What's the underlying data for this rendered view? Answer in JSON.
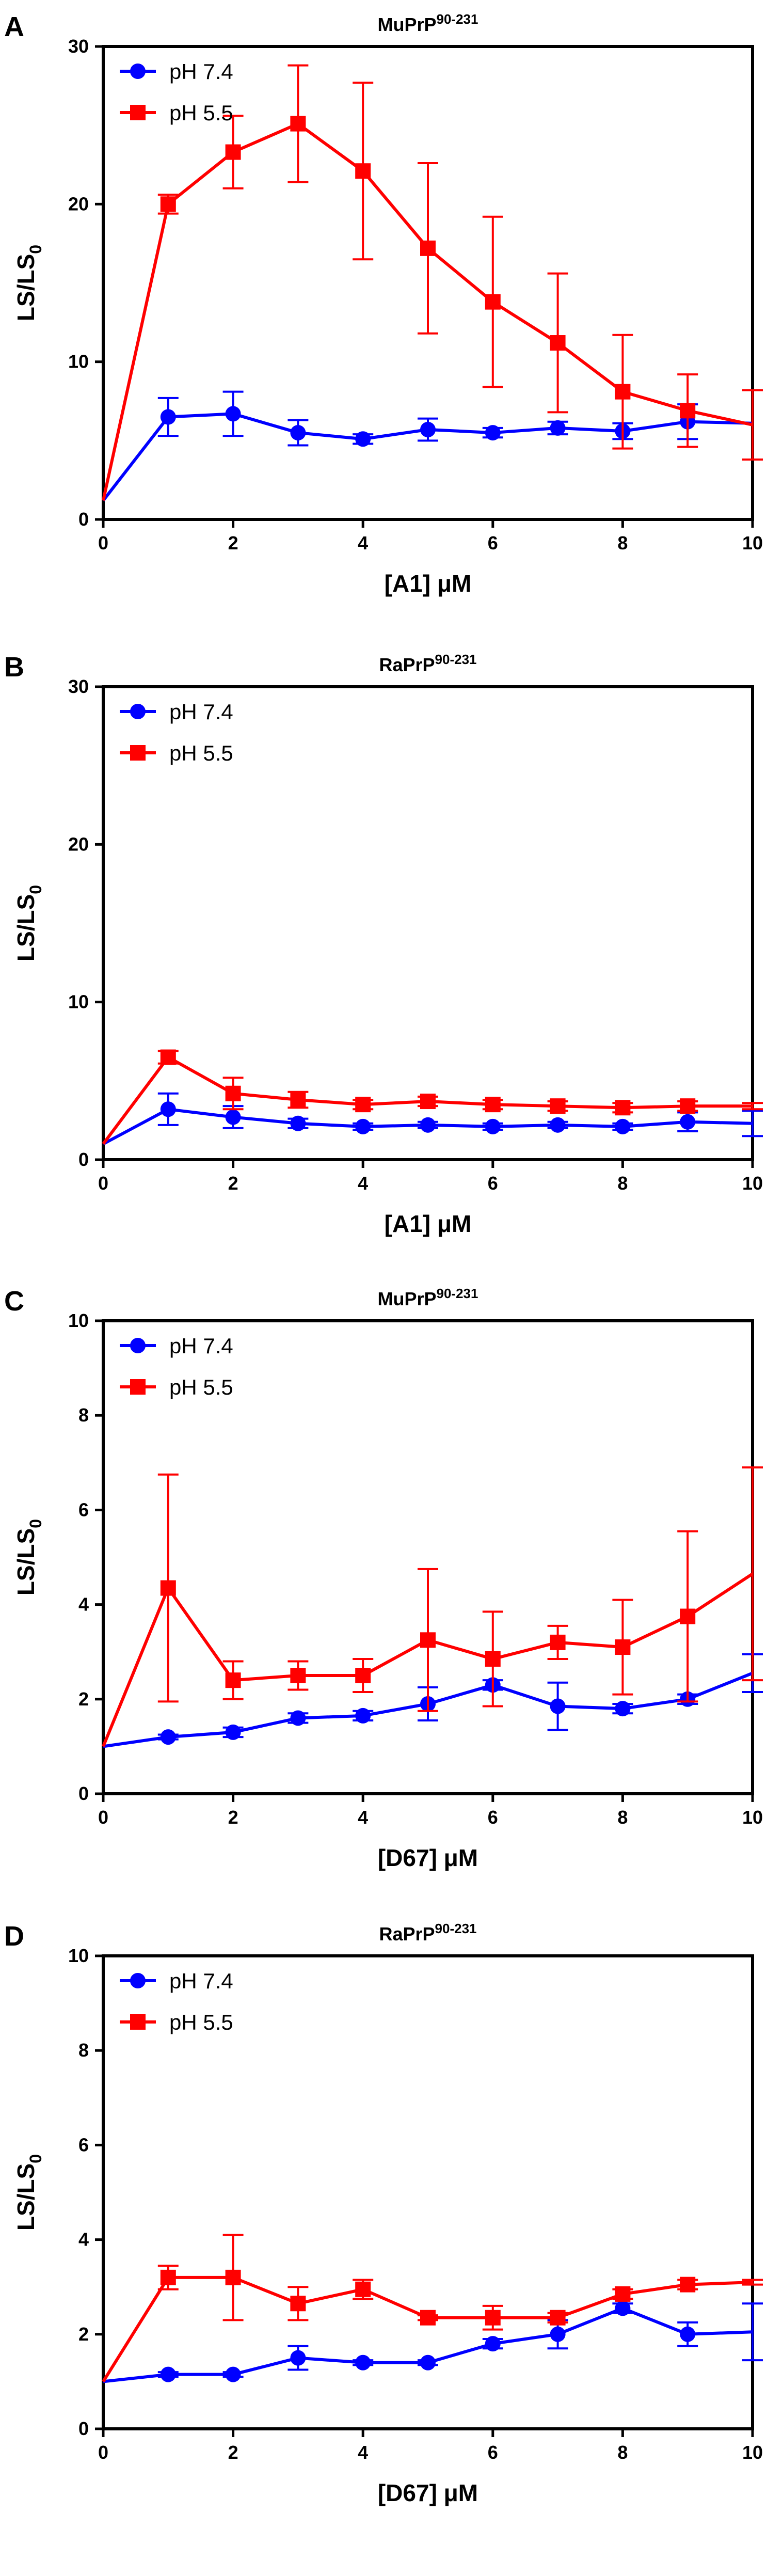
{
  "chart_data": [
    {
      "type": "line",
      "panel_letter": "A",
      "title": "MuPrP",
      "title_superscript": "90-231",
      "xlabel": "[A1] μM",
      "ylabel": "LS/LS",
      "ylabel_subscript": "0",
      "xlim": [
        0,
        10
      ],
      "ylim": [
        0,
        30
      ],
      "xticks": [
        0,
        2,
        4,
        6,
        8,
        10
      ],
      "yticks": [
        0,
        10,
        20,
        30
      ],
      "x": [
        0,
        1,
        2,
        3,
        4,
        5,
        6,
        7,
        8,
        9,
        10
      ],
      "legend_position": "top-left",
      "series": [
        {
          "name": "pH 7.4",
          "color": "#0000ff",
          "marker": "circle",
          "values": [
            1.2,
            6.5,
            6.7,
            5.5,
            5.1,
            5.7,
            5.5,
            5.8,
            5.6,
            6.2,
            6.1
          ],
          "errors": [
            0,
            1.2,
            1.4,
            0.8,
            0.3,
            0.7,
            0.3,
            0.4,
            0.5,
            1.1,
            0
          ]
        },
        {
          "name": "pH 5.5",
          "color": "#ff0000",
          "marker": "square",
          "values": [
            1.2,
            20,
            23.3,
            25.1,
            22.1,
            17.2,
            13.8,
            11.2,
            8.1,
            6.9,
            6.0
          ],
          "errors": [
            0,
            0.6,
            2.3,
            3.7,
            5.6,
            5.4,
            5.4,
            4.4,
            3.6,
            2.3,
            2.2
          ]
        }
      ]
    },
    {
      "type": "line",
      "panel_letter": "B",
      "title": "RaPrP",
      "title_superscript": "90-231",
      "xlabel": "[A1] μM",
      "ylabel": "LS/LS",
      "ylabel_subscript": "0",
      "xlim": [
        0,
        10
      ],
      "ylim": [
        0,
        30
      ],
      "xticks": [
        0,
        2,
        4,
        6,
        8,
        10
      ],
      "yticks": [
        0,
        10,
        20,
        30
      ],
      "x": [
        0,
        1,
        2,
        3,
        4,
        5,
        6,
        7,
        8,
        9,
        10
      ],
      "legend_position": "top-left",
      "series": [
        {
          "name": "pH 7.4",
          "color": "#0000ff",
          "marker": "circle",
          "values": [
            1.0,
            3.2,
            2.7,
            2.3,
            2.1,
            2.2,
            2.1,
            2.2,
            2.1,
            2.4,
            2.3
          ],
          "errors": [
            0,
            1.0,
            0.7,
            0.3,
            0.2,
            0.2,
            0.2,
            0.2,
            0.2,
            0.6,
            0.8
          ]
        },
        {
          "name": "pH 5.5",
          "color": "#ff0000",
          "marker": "square",
          "values": [
            1.0,
            6.5,
            4.2,
            3.8,
            3.5,
            3.7,
            3.5,
            3.4,
            3.3,
            3.4,
            3.4
          ],
          "errors": [
            0,
            0.4,
            1.0,
            0.5,
            0.3,
            0.3,
            0.3,
            0.3,
            0.3,
            0.3,
            0.2
          ]
        }
      ]
    },
    {
      "type": "line",
      "panel_letter": "C",
      "title": "MuPrP",
      "title_superscript": "90-231",
      "xlabel": "[D67] μM",
      "ylabel": "LS/LS",
      "ylabel_subscript": "0",
      "xlim": [
        0,
        10
      ],
      "ylim": [
        0,
        10
      ],
      "xticks": [
        0,
        2,
        4,
        6,
        8,
        10
      ],
      "yticks": [
        0,
        2,
        4,
        6,
        8,
        10
      ],
      "x": [
        0,
        1,
        2,
        3,
        4,
        5,
        6,
        7,
        8,
        9,
        10
      ],
      "legend_position": "top-left",
      "series": [
        {
          "name": "pH 7.4",
          "color": "#0000ff",
          "marker": "circle",
          "values": [
            1.0,
            1.2,
            1.3,
            1.6,
            1.65,
            1.9,
            2.3,
            1.85,
            1.8,
            2.0,
            2.55
          ],
          "errors": [
            0,
            0.05,
            0.1,
            0.1,
            0.1,
            0.35,
            0.1,
            0.5,
            0.1,
            0.1,
            0.4
          ]
        },
        {
          "name": "pH 5.5",
          "color": "#ff0000",
          "marker": "square",
          "values": [
            1.0,
            4.35,
            2.4,
            2.5,
            2.5,
            3.25,
            2.85,
            3.2,
            3.1,
            3.75,
            4.65
          ],
          "errors": [
            0,
            2.4,
            0.4,
            0.3,
            0.35,
            1.5,
            1.0,
            0.35,
            1.0,
            1.8,
            2.25
          ]
        }
      ]
    },
    {
      "type": "line",
      "panel_letter": "D",
      "title": "RaPrP",
      "title_superscript": "90-231",
      "xlabel": "[D67] μM",
      "ylabel": "LS/LS",
      "ylabel_subscript": "0",
      "xlim": [
        0,
        10
      ],
      "ylim": [
        0,
        10
      ],
      "xticks": [
        0,
        2,
        4,
        6,
        8,
        10
      ],
      "yticks": [
        0,
        2,
        4,
        6,
        8,
        10
      ],
      "x": [
        0,
        1,
        2,
        3,
        4,
        5,
        6,
        7,
        8,
        9,
        10
      ],
      "legend_position": "top-left",
      "series": [
        {
          "name": "pH 7.4",
          "color": "#0000ff",
          "marker": "circle",
          "values": [
            1.0,
            1.15,
            1.15,
            1.5,
            1.4,
            1.4,
            1.8,
            2.0,
            2.55,
            2.0,
            2.05
          ],
          "errors": [
            0,
            0.05,
            0.05,
            0.25,
            0.05,
            0.05,
            0.1,
            0.3,
            0.1,
            0.25,
            0.6
          ]
        },
        {
          "name": "pH 5.5",
          "color": "#ff0000",
          "marker": "square",
          "values": [
            1.0,
            3.2,
            3.2,
            2.65,
            2.95,
            2.35,
            2.35,
            2.35,
            2.85,
            3.05,
            3.1
          ],
          "errors": [
            0,
            0.25,
            0.9,
            0.35,
            0.2,
            0.05,
            0.25,
            0.1,
            0.1,
            0.1,
            0.05
          ]
        }
      ]
    }
  ]
}
